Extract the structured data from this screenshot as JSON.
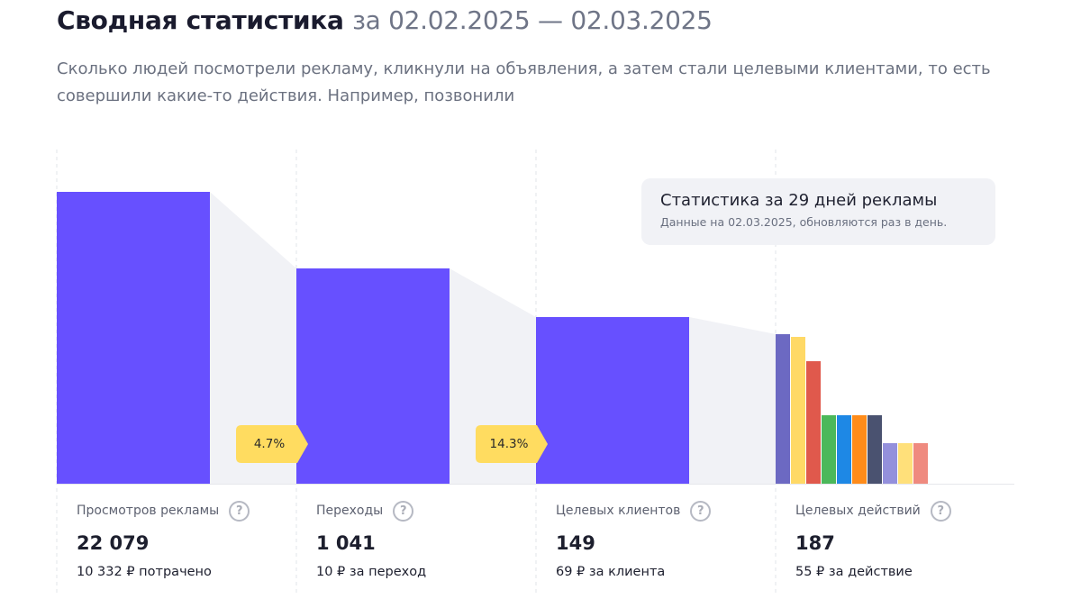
{
  "header": {
    "title": "Сводная статистика",
    "period": "за 02.02.2025 — 02.03.2025",
    "subtitle": "Сколько людей посмотрели рекламу, кликнули на объявления, а затем стали целевыми клиентами, то есть совершили какие-то действия. Например, позвонили"
  },
  "tooltip": {
    "title": "Статистика за 29 дней рекламы",
    "subtitle": "Данные на 02.03.2025, обновляются раз в день."
  },
  "conversions": [
    {
      "label": "4.7%"
    },
    {
      "label": "14.3%"
    }
  ],
  "stats": [
    {
      "label": "Просмотров рекламы",
      "value": "22 079",
      "cost": "10 332 ₽ потрачено"
    },
    {
      "label": "Переходы",
      "value": "1 041",
      "cost": "10 ₽ за переход"
    },
    {
      "label": "Целевых клиентов",
      "value": "149",
      "cost": "69 ₽ за клиента"
    },
    {
      "label": "Целевых действий",
      "value": "187",
      "cost": "55 ₽ за действие"
    }
  ],
  "help_glyph": "?",
  "colors": {
    "bar": "#6750ff",
    "connector": "#f1f2f6",
    "badge": "#ffdc60",
    "actions": [
      "#6c69c2",
      "#ffd966",
      "#e0594c",
      "#4bb85a",
      "#1e88e5",
      "#ff8c1a",
      "#4a5270",
      "#9490dc",
      "#ffe07a",
      "#ef8a7f"
    ]
  },
  "chart_data": {
    "type": "bar",
    "title": "Сводная статистика",
    "categories": [
      "Просмотров рекламы",
      "Переходы",
      "Целевых клиентов",
      "Целевых действий"
    ],
    "values": [
      22079,
      1041,
      149,
      187
    ],
    "conversion_rates": [
      "4.7%",
      "14.3%"
    ]
  }
}
